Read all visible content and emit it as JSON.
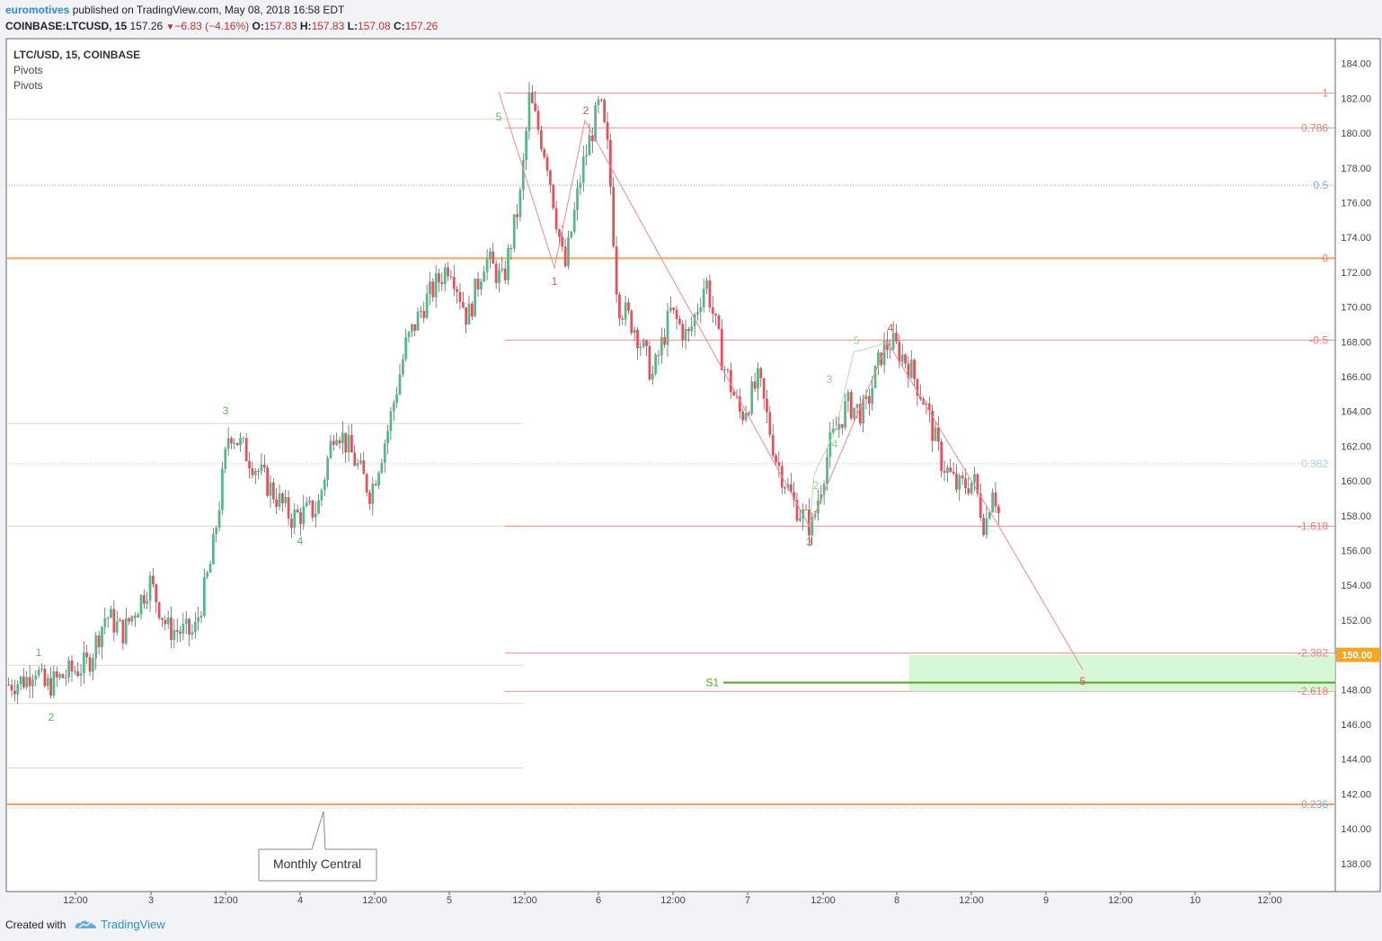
{
  "header": {
    "user": "euromotives",
    "published": "published on TradingView.com, May 08, 2018 16:58 EDT",
    "symbol": "COINBASE:LTCUSD, 15",
    "last": "157.26",
    "change": "−6.83 (−4.16%)",
    "o_label": "O:",
    "o": "157.83",
    "h_label": "H:",
    "h": "157.83",
    "l_label": "L:",
    "l": "157.08",
    "c_label": "C:",
    "c": "157.26"
  },
  "legend": {
    "title": "LTC/USD, 15, COINBASE",
    "indicators": [
      "Pivots",
      "Pivots"
    ]
  },
  "footer": {
    "created": "Created with",
    "brand": "TradingView",
    "logo": "tradingview-cloud-icon"
  },
  "colors": {
    "up": "#53b987",
    "down": "#eb4d5c",
    "pivot": "#f5a35a",
    "fib": "#e57373",
    "s1": "#5aa02c",
    "accent": "#f5a623"
  },
  "chart_data": {
    "type": "candlestick",
    "ylim": [
      136.9,
      185.3
    ],
    "price_ticks": [
      184,
      182,
      180,
      178,
      176,
      174,
      172,
      170,
      168,
      166,
      164,
      162,
      160,
      158,
      156,
      154,
      152,
      150,
      148,
      146,
      144,
      142,
      140,
      138
    ],
    "current_price_label": "150.00",
    "time_labels": [
      "12:00",
      "3",
      "12:00",
      "4",
      "12:00",
      "5",
      "12:00",
      "6",
      "12:00",
      "7",
      "12:00",
      "8",
      "12:00",
      "9",
      "12:00",
      "10",
      "12:00"
    ],
    "price_path": [
      [
        0.0,
        148.3
      ],
      [
        0.02,
        148.6
      ],
      [
        0.03,
        149.4
      ],
      [
        0.04,
        148.1
      ],
      [
        0.07,
        149.0
      ],
      [
        0.09,
        149.5
      ],
      [
        0.11,
        152.3
      ],
      [
        0.13,
        151.3
      ],
      [
        0.16,
        154.2
      ],
      [
        0.18,
        151.5
      ],
      [
        0.21,
        151.2
      ],
      [
        0.23,
        155.5
      ],
      [
        0.25,
        163.0
      ],
      [
        0.28,
        160.8
      ],
      [
        0.3,
        159.3
      ],
      [
        0.32,
        157.9
      ],
      [
        0.35,
        158.4
      ],
      [
        0.37,
        163.3
      ],
      [
        0.39,
        161.4
      ],
      [
        0.41,
        159.3
      ],
      [
        0.43,
        163.0
      ],
      [
        0.45,
        167.8
      ],
      [
        0.47,
        170.1
      ],
      [
        0.5,
        172.6
      ],
      [
        0.52,
        169.3
      ],
      [
        0.54,
        172.9
      ],
      [
        0.56,
        171.4
      ],
      [
        0.58,
        176.4
      ],
      [
        0.59,
        182.0
      ],
      [
        0.61,
        178.5
      ],
      [
        0.63,
        172.1
      ],
      [
        0.65,
        178.0
      ],
      [
        0.67,
        181.8
      ],
      [
        0.68,
        178.6
      ],
      [
        0.69,
        170.3
      ],
      [
        0.71,
        168.8
      ],
      [
        0.73,
        166.0
      ],
      [
        0.75,
        169.7
      ],
      [
        0.77,
        168.2
      ],
      [
        0.79,
        171.6
      ],
      [
        0.81,
        166.7
      ],
      [
        0.83,
        163.7
      ],
      [
        0.85,
        165.8
      ],
      [
        0.87,
        161.2
      ],
      [
        0.89,
        158.7
      ],
      [
        0.91,
        157.3
      ],
      [
        0.93,
        162.0
      ],
      [
        0.95,
        164.4
      ],
      [
        0.97,
        163.9
      ],
      [
        0.99,
        167.5
      ],
      [
        1.0,
        168.0
      ]
    ],
    "price_path_note_x": "fraction of candle span",
    "horizontal_levels": [
      {
        "type": "pivot",
        "price": 172.8,
        "color": "#f5a35a"
      },
      {
        "type": "pivot",
        "price": 141.4,
        "color": "#f5a35a"
      },
      {
        "type": "pivot-faint",
        "price": 180.8
      },
      {
        "type": "pivot-faint",
        "price": 163.3
      },
      {
        "type": "pivot-faint",
        "price": 157.4
      },
      {
        "type": "pivot-faint",
        "price": 149.4
      },
      {
        "type": "pivot-faint",
        "price": 147.2
      },
      {
        "type": "pivot-faint",
        "price": 143.5
      }
    ],
    "fib_levels": [
      {
        "label": "1",
        "price": 182.3,
        "color": "#e57373"
      },
      {
        "label": "0.786",
        "price": 180.3,
        "color": "#e57373"
      },
      {
        "label": "0.5",
        "price": 177.0,
        "color": "#7aa6d6"
      },
      {
        "label": "0",
        "price": 172.8,
        "color": "#e57373"
      },
      {
        "label": "-0.5",
        "price": 168.1,
        "color": "#e57373"
      },
      {
        "label": "0.382",
        "price": 161.0,
        "color": "#a8c8e8"
      },
      {
        "label": "-1.618",
        "price": 157.4,
        "color": "#e57373"
      },
      {
        "label": "-2.382",
        "price": 150.1,
        "color": "#e57373"
      },
      {
        "label": "-2.618",
        "price": 147.9,
        "color": "#e57373"
      },
      {
        "label": "0.236",
        "price": 141.4,
        "color": "#7aa6d6"
      }
    ],
    "wave_labels_green": [
      "1",
      "2",
      "3",
      "4",
      "5"
    ],
    "wave_labels_red": [
      "1",
      "2",
      "3",
      "4",
      "5"
    ],
    "wave_labels_small": [
      "2",
      "3",
      "4",
      "5"
    ],
    "s1_label": "S1",
    "callout": "Monthly Central"
  }
}
